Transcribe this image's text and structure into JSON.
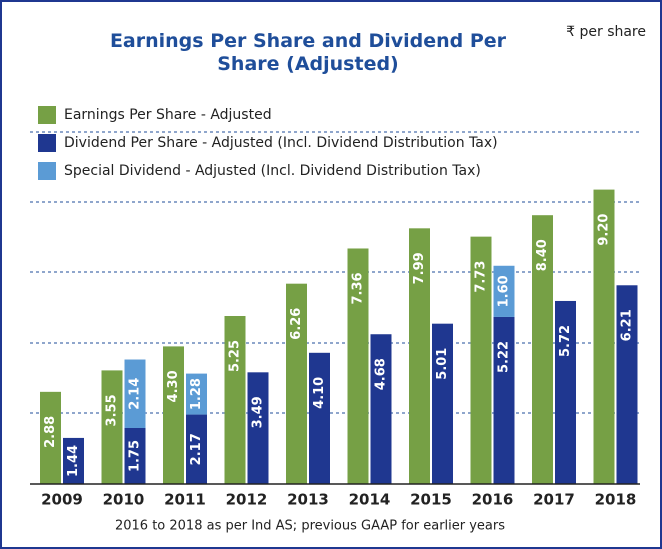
{
  "chart_data": {
    "type": "bar",
    "title": "Earnings Per Share and Dividend Per Share (Adjusted)",
    "unit_label": "₹ per share",
    "footnote": "2016 to 2018 as per Ind AS; previous GAAP for earlier years",
    "categories": [
      "2009",
      "2010",
      "2011",
      "2012",
      "2013",
      "2014",
      "2015",
      "2016",
      "2017",
      "2018"
    ],
    "series": [
      {
        "name": "Earnings Per Share - Adjusted",
        "color": "#76a045",
        "values": [
          2.88,
          3.55,
          4.3,
          5.25,
          6.26,
          7.36,
          7.99,
          7.73,
          8.4,
          9.2
        ],
        "value_labels": [
          "2.88",
          "3.55",
          "4.30",
          "5.25",
          "6.26",
          "7.36",
          "7.99",
          "7.73",
          "8.40",
          "9.20"
        ]
      },
      {
        "name": "Dividend Per Share - Adjusted (Incl. Dividend Distribution Tax)",
        "color": "#1f3790",
        "values": [
          1.44,
          1.75,
          2.17,
          3.49,
          4.1,
          4.68,
          5.01,
          5.22,
          5.72,
          6.21
        ],
        "value_labels": [
          "1.44",
          "1.75",
          "2.17",
          "3.49",
          "4.10",
          "4.68",
          "5.01",
          "5.22",
          "5.72",
          "6.21"
        ]
      },
      {
        "name": "Special Dividend - Adjusted (Incl. Dividend Distribution Tax)",
        "color": "#5b9bd5",
        "stack_with": 1,
        "values": [
          null,
          2.14,
          1.28,
          null,
          null,
          null,
          null,
          1.6,
          null,
          null
        ],
        "value_labels": [
          null,
          "2.14",
          "1.28",
          null,
          null,
          null,
          null,
          "1.60",
          null,
          null
        ]
      }
    ],
    "ylim": [
      0,
      10
    ]
  }
}
